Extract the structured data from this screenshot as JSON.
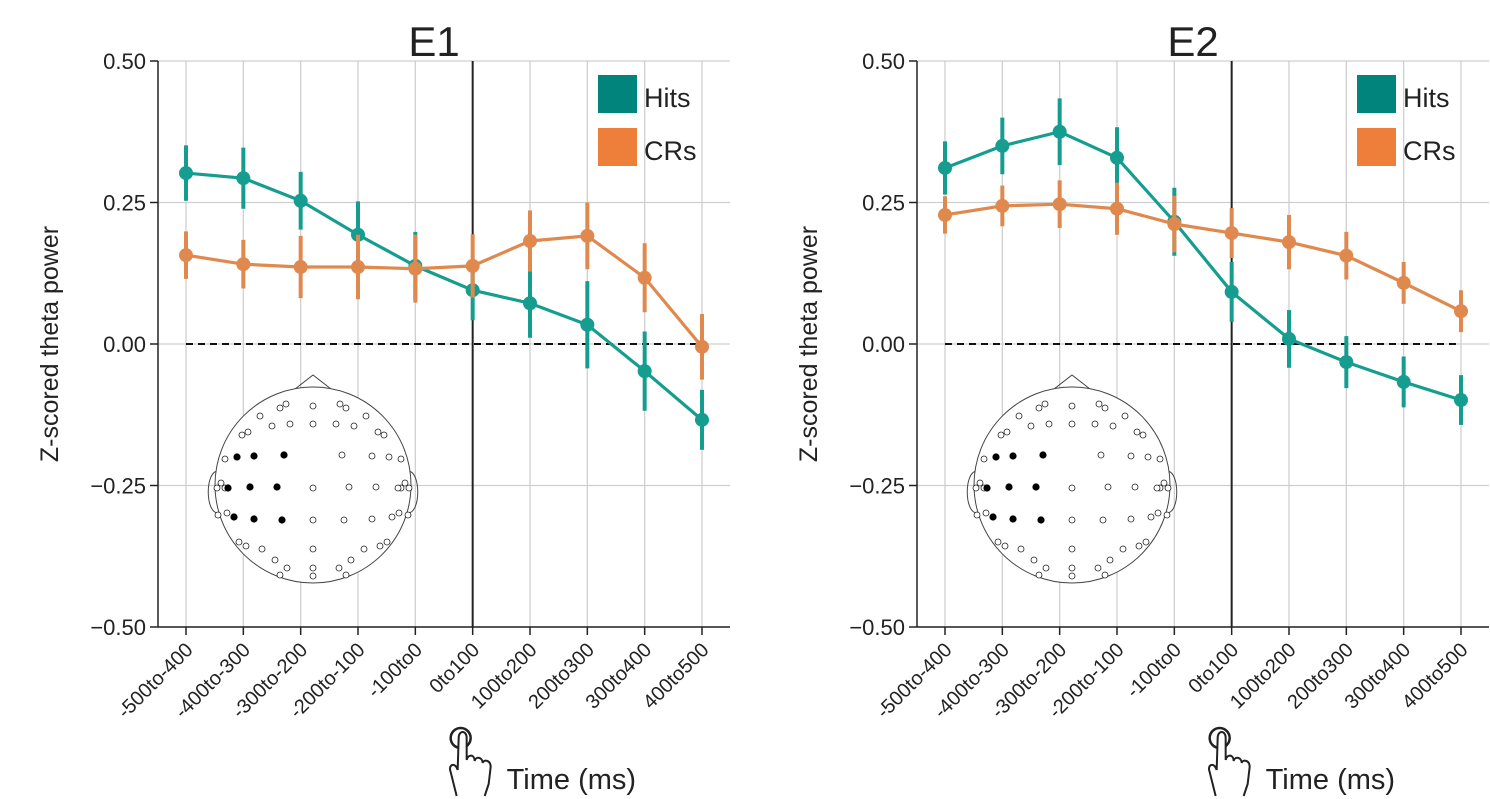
{
  "chart_data": [
    {
      "type": "line",
      "title": "E1",
      "xlabel": "Time (ms)",
      "ylabel": "Z-scored theta power",
      "categories": [
        "-500to-400",
        "-400to-300",
        "-300to-200",
        "-200to-100",
        "-100to0",
        "0to100",
        "100to200",
        "200to300",
        "300to400",
        "400to500"
      ],
      "series": [
        {
          "name": "Hits",
          "color": "#159d8f",
          "legend_color": "#00847c",
          "values": [
            0.302,
            0.293,
            0.253,
            0.193,
            0.138,
            0.095,
            0.072,
            0.034,
            -0.048,
            -0.134
          ],
          "errors": [
            0.049,
            0.054,
            0.051,
            0.059,
            0.06,
            0.053,
            0.061,
            0.077,
            0.07,
            0.053
          ]
        },
        {
          "name": "CRs",
          "color": "#e0894f",
          "legend_color": "#ee7f3a",
          "values": [
            0.157,
            0.141,
            0.136,
            0.136,
            0.133,
            0.138,
            0.182,
            0.191,
            0.117,
            -0.005
          ],
          "errors": [
            0.042,
            0.043,
            0.055,
            0.057,
            0.06,
            0.056,
            0.054,
            0.059,
            0.061,
            0.058
          ]
        }
      ],
      "ylim": [
        -0.5,
        0.5
      ],
      "yticks": [
        {
          "value": -0.5,
          "label": "−0.50"
        },
        {
          "value": -0.25,
          "label": "−0.25"
        },
        {
          "value": 0,
          "label": "0.00"
        },
        {
          "value": 0.25,
          "label": "0.25"
        },
        {
          "value": 0.5,
          "label": "0.50"
        }
      ],
      "grid": true,
      "legend": "upper right",
      "hline": 0,
      "vline": "0to100"
    },
    {
      "type": "line",
      "title": "E2",
      "xlabel": "Time (ms)",
      "ylabel": "Z-scored theta power",
      "categories": [
        "-500to-400",
        "-400to-300",
        "-300to-200",
        "-200to-100",
        "-100to0",
        "0to100",
        "100to200",
        "200to300",
        "300to400",
        "400to500"
      ],
      "series": [
        {
          "name": "Hits",
          "color": "#159d8f",
          "legend_color": "#00847c",
          "values": [
            0.311,
            0.35,
            0.375,
            0.329,
            0.216,
            0.092,
            0.009,
            -0.032,
            -0.067,
            -0.099
          ],
          "errors": [
            0.047,
            0.05,
            0.059,
            0.054,
            0.06,
            0.053,
            0.051,
            0.046,
            0.045,
            0.044
          ]
        },
        {
          "name": "CRs",
          "color": "#e0894f",
          "legend_color": "#ee7f3a",
          "values": [
            0.228,
            0.244,
            0.247,
            0.239,
            0.212,
            0.196,
            0.18,
            0.156,
            0.108,
            0.058
          ],
          "errors": [
            0.033,
            0.036,
            0.042,
            0.046,
            0.05,
            0.044,
            0.048,
            0.042,
            0.037,
            0.037
          ]
        }
      ],
      "ylim": [
        -0.5,
        0.5
      ],
      "yticks": [
        {
          "value": -0.5,
          "label": "−0.50"
        },
        {
          "value": -0.25,
          "label": "−0.25"
        },
        {
          "value": 0,
          "label": "0.00"
        },
        {
          "value": 0.25,
          "label": "0.25"
        },
        {
          "value": 0.5,
          "label": "0.50"
        }
      ],
      "grid": true,
      "legend": "upper right",
      "hline": 0,
      "vline": "0to100"
    }
  ]
}
